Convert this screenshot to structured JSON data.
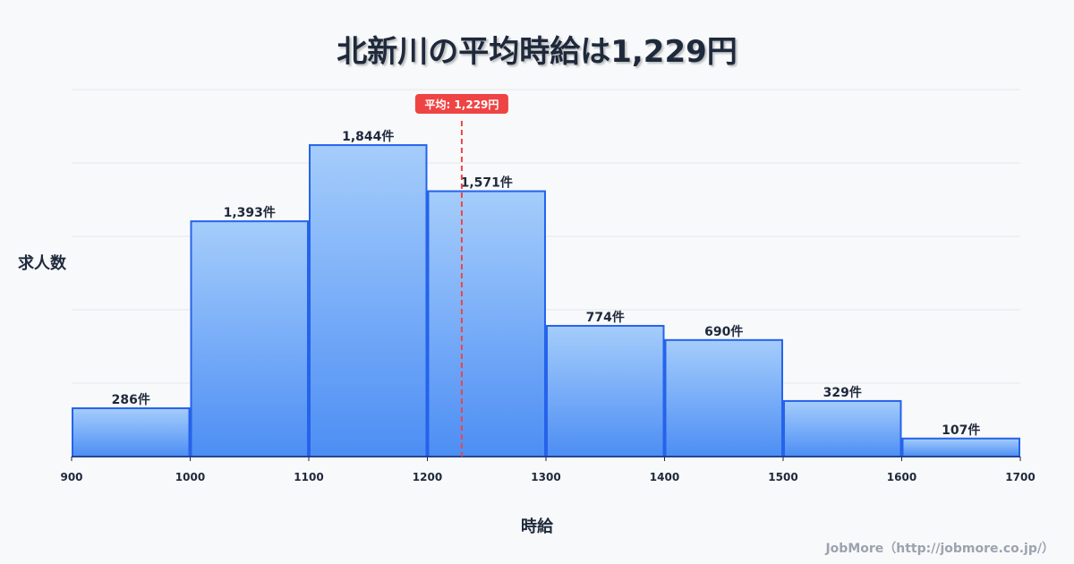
{
  "title": "北新川の平均時給は1,229円",
  "footer": "JobMore（http://jobmore.co.jp/）",
  "colors": {
    "bar_top": "#a5cdfb",
    "bar_bottom": "#4d8ef4",
    "bar_stroke": "#2563eb",
    "mean": "#ef4444",
    "grid": "#e5e7eb"
  },
  "chart_data": {
    "type": "bar",
    "title": "北新川の平均時給は1,229円",
    "xlabel": "時給",
    "ylabel": "求人数",
    "bins": [
      [
        900,
        1000
      ],
      [
        1000,
        1100
      ],
      [
        1100,
        1200
      ],
      [
        1200,
        1300
      ],
      [
        1300,
        1400
      ],
      [
        1400,
        1500
      ],
      [
        1500,
        1600
      ],
      [
        1600,
        1700
      ]
    ],
    "values": [
      286,
      1393,
      1844,
      1571,
      774,
      690,
      329,
      107
    ],
    "value_labels": [
      "286件",
      "1,393件",
      "1,844件",
      "1,571件",
      "774件",
      "690件",
      "329件",
      "107件"
    ],
    "x_ticks": [
      "900",
      "1000",
      "1100",
      "1200",
      "1300",
      "1400",
      "1500",
      "1600",
      "1700"
    ],
    "xlim": [
      900,
      1700
    ],
    "ylim": [
      0,
      2173
    ],
    "grid": true,
    "mean": {
      "value": 1229,
      "label": "平均: 1,229円"
    }
  }
}
